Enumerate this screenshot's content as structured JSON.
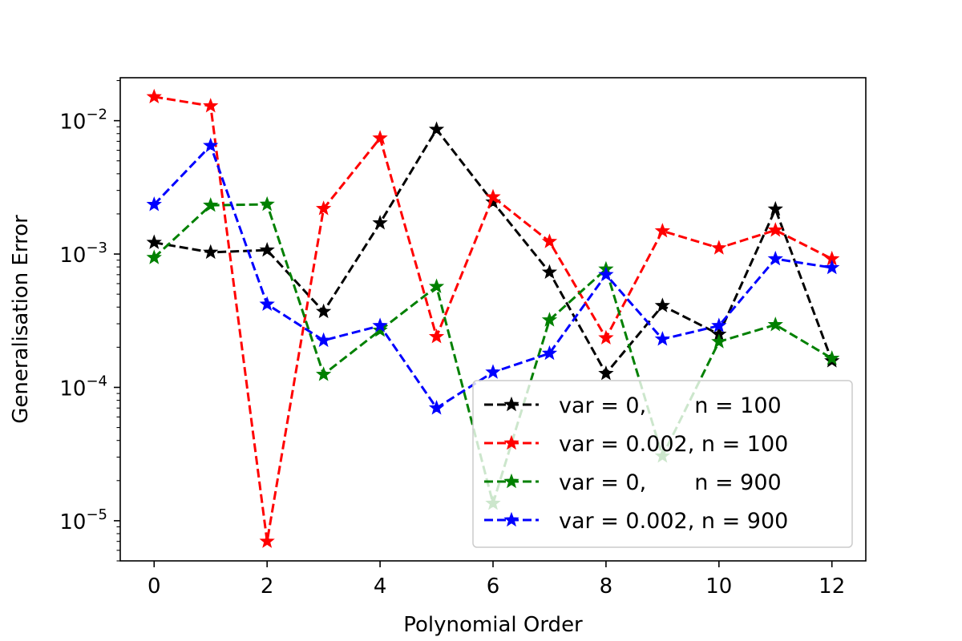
{
  "chart_data": {
    "type": "line",
    "title": "",
    "xlabel": "Polynomial Order",
    "ylabel": "Generalisation Error",
    "xscale": "linear",
    "yscale": "log",
    "xlim": [
      -0.6,
      12.6
    ],
    "ylim": [
      5e-06,
      0.021
    ],
    "xticks": [
      0,
      2,
      4,
      6,
      8,
      10,
      12
    ],
    "xtick_labels": [
      "0",
      "2",
      "4",
      "6",
      "8",
      "10",
      "12"
    ],
    "yticks": [
      1e-05,
      0.0001,
      0.001,
      0.01
    ],
    "ytick_labels": [
      {
        "base": "10",
        "exp": "−5"
      },
      {
        "base": "10",
        "exp": "−4"
      },
      {
        "base": "10",
        "exp": "−3"
      },
      {
        "base": "10",
        "exp": "−2"
      }
    ],
    "grid": false,
    "legend": "lower-right",
    "x": [
      0,
      1,
      2,
      3,
      4,
      5,
      6,
      7,
      8,
      9,
      10,
      11,
      12
    ],
    "series": [
      {
        "name": "var = 0,       n = 100",
        "color": "#000000",
        "style": "dashed",
        "marker": "star",
        "values": [
          0.00122,
          0.00103,
          0.00107,
          0.00037,
          0.00171,
          0.0086,
          0.00245,
          0.00073,
          0.000127,
          0.00041,
          0.00025,
          0.00217,
          0.000158
        ]
      },
      {
        "name": "var = 0.002, n = 100",
        "color": "#ff0000",
        "style": "dashed",
        "marker": "star",
        "values": [
          0.0151,
          0.0129,
          7e-06,
          0.00219,
          0.0074,
          0.00024,
          0.00268,
          0.00124,
          0.000235,
          0.00149,
          0.00111,
          0.00151,
          0.00092
        ]
      },
      {
        "name": "var = 0,       n = 900",
        "color": "#008000",
        "style": "dashed",
        "marker": "star",
        "values": [
          0.00094,
          0.00232,
          0.00236,
          0.000125,
          0.000268,
          0.00057,
          1.35e-05,
          0.00032,
          0.00077,
          3.05e-05,
          0.00022,
          0.000295,
          0.000165
        ]
      },
      {
        "name": "var = 0.002, n = 900",
        "color": "#0000ff",
        "style": "dashed",
        "marker": "star",
        "values": [
          0.00235,
          0.0065,
          0.00042,
          0.000225,
          0.00029,
          7e-05,
          0.00013,
          0.00018,
          0.0007,
          0.00023,
          0.00029,
          0.00092,
          0.00079
        ]
      }
    ]
  }
}
